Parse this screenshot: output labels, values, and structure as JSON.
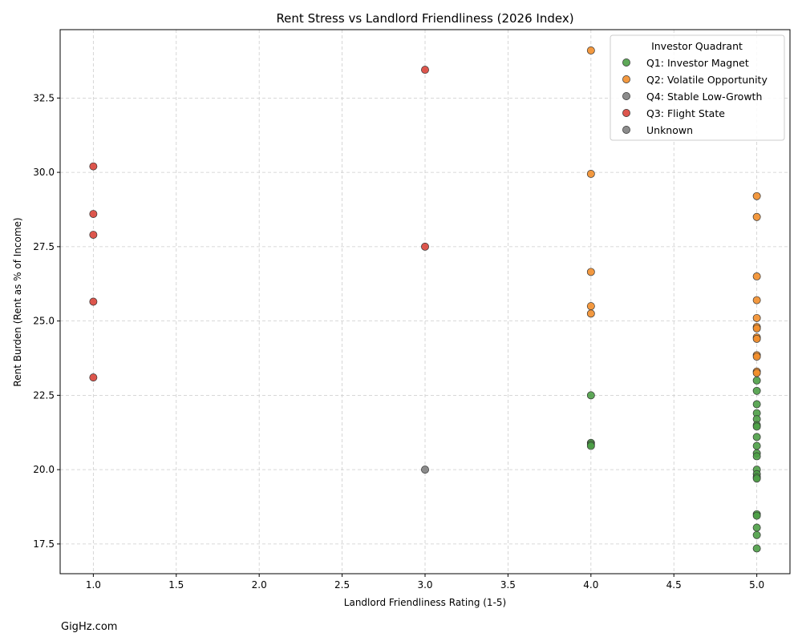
{
  "chart_data": {
    "type": "scatter",
    "title": "Rent Stress vs Landlord Friendliness (2026 Index)",
    "xlabel": "Landlord Friendliness Rating (1-5)",
    "ylabel": "Rent Burden (Rent as % of Income)",
    "xlim": [
      0.8,
      5.2
    ],
    "ylim": [
      16.5,
      34.8
    ],
    "xticks": [
      "1.0",
      "1.5",
      "2.0",
      "2.5",
      "3.0",
      "3.5",
      "4.0",
      "4.5",
      "5.0"
    ],
    "yticks": [
      "17.5",
      "20.0",
      "22.5",
      "25.0",
      "27.5",
      "30.0",
      "32.5"
    ],
    "grid": true,
    "legend_title": "Investor Quadrant",
    "legend_position": "top-right",
    "series": [
      {
        "name": "Q1: Investor Magnet",
        "color": "#4c9e46",
        "points": [
          [
            4,
            22.5
          ],
          [
            4,
            20.9
          ],
          [
            4,
            20.85
          ],
          [
            4,
            20.8
          ],
          [
            5,
            23.0
          ],
          [
            5,
            22.65
          ],
          [
            5,
            22.2
          ],
          [
            5,
            21.9
          ],
          [
            5,
            21.7
          ],
          [
            5,
            21.5
          ],
          [
            5,
            21.45
          ],
          [
            5,
            21.1
          ],
          [
            5,
            20.8
          ],
          [
            5,
            20.55
          ],
          [
            5,
            20.45
          ],
          [
            5,
            20.0
          ],
          [
            5,
            19.85
          ],
          [
            5,
            19.75
          ],
          [
            5,
            19.7
          ],
          [
            5,
            18.5
          ],
          [
            5,
            18.45
          ],
          [
            5,
            18.05
          ],
          [
            5,
            17.8
          ],
          [
            5,
            17.35
          ]
        ]
      },
      {
        "name": "Q2: Volatile Opportunity",
        "color": "#f28e2b",
        "points": [
          [
            4,
            34.1
          ],
          [
            4,
            29.95
          ],
          [
            4,
            26.65
          ],
          [
            4,
            25.5
          ],
          [
            4,
            25.25
          ],
          [
            5,
            29.2
          ],
          [
            5,
            28.5
          ],
          [
            5,
            26.5
          ],
          [
            5,
            25.7
          ],
          [
            5,
            25.1
          ],
          [
            5,
            24.8
          ],
          [
            5,
            24.75
          ],
          [
            5,
            24.45
          ],
          [
            5,
            24.4
          ],
          [
            5,
            23.85
          ],
          [
            5,
            23.8
          ],
          [
            5,
            23.3
          ],
          [
            5,
            23.25
          ]
        ]
      },
      {
        "name": "Q4: Stable Low-Growth",
        "color": "#808080",
        "points": [
          [
            3,
            20.0
          ]
        ]
      },
      {
        "name": "Q3: Flight State",
        "color": "#d9443a",
        "points": [
          [
            1,
            30.2
          ],
          [
            1,
            28.6
          ],
          [
            1,
            27.9
          ],
          [
            1,
            25.65
          ],
          [
            1,
            23.1
          ],
          [
            3,
            33.45
          ],
          [
            3,
            27.5
          ]
        ]
      },
      {
        "name": "Unknown",
        "color": "#808080",
        "points": []
      }
    ]
  },
  "footer": {
    "source": "GigHz.com"
  }
}
